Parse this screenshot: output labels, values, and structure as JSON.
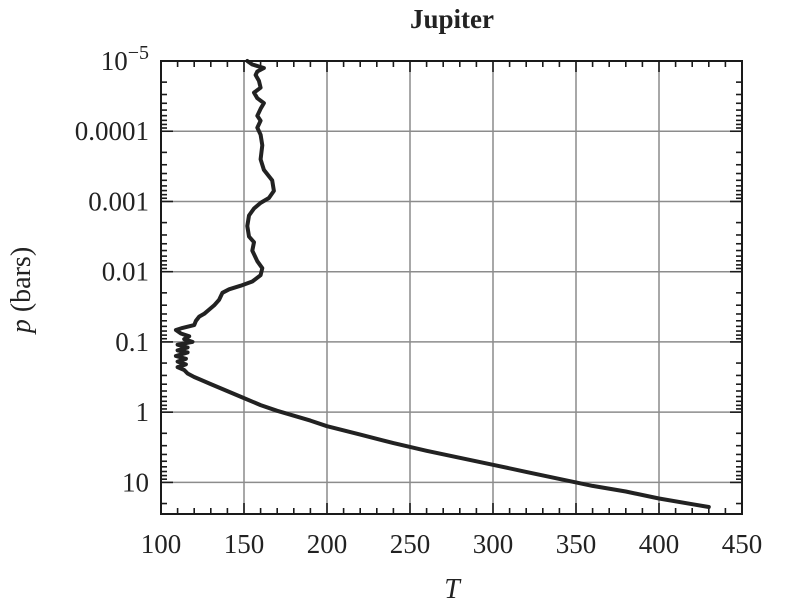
{
  "chart_data": {
    "type": "line",
    "title": "Jupiter",
    "xlabel": "T",
    "ylabel_var": "p",
    "ylabel_unit": " (bars)",
    "xlim": [
      100,
      450
    ],
    "x_ticks": [
      100,
      150,
      200,
      250,
      300,
      350,
      400,
      450
    ],
    "y_scale": "log",
    "y_reversed": true,
    "ylim_log10": [
      -5,
      1.45
    ],
    "y_ticks": [
      {
        "log10": -5,
        "base": "10",
        "exp": "−5"
      },
      {
        "log10": -4,
        "label": "0.0001"
      },
      {
        "log10": -3,
        "label": "0.001"
      },
      {
        "log10": -2,
        "label": "0.01"
      },
      {
        "log10": -1,
        "label": "0.1"
      },
      {
        "log10": 0,
        "label": "1"
      },
      {
        "log10": 1,
        "label": "10"
      }
    ],
    "grid": true,
    "line_color": "#222222",
    "grid_color": "#8c8c8c",
    "series": [
      {
        "points": [
          [
            152,
            -5.0
          ],
          [
            155,
            -4.95
          ],
          [
            162,
            -4.9
          ],
          [
            158,
            -4.85
          ],
          [
            157,
            -4.8
          ],
          [
            159,
            -4.72
          ],
          [
            160,
            -4.62
          ],
          [
            156,
            -4.55
          ],
          [
            158,
            -4.47
          ],
          [
            162,
            -4.4
          ],
          [
            160,
            -4.32
          ],
          [
            158,
            -4.22
          ],
          [
            160,
            -4.15
          ],
          [
            158,
            -4.05
          ],
          [
            160,
            -3.95
          ],
          [
            161,
            -3.8
          ],
          [
            160,
            -3.6
          ],
          [
            162,
            -3.45
          ],
          [
            167,
            -3.3
          ],
          [
            168,
            -3.15
          ],
          [
            165,
            -3.05
          ],
          [
            160,
            -2.98
          ],
          [
            156,
            -2.9
          ],
          [
            153,
            -2.8
          ],
          [
            152,
            -2.65
          ],
          [
            153,
            -2.5
          ],
          [
            156,
            -2.42
          ],
          [
            155,
            -2.3
          ],
          [
            158,
            -2.15
          ],
          [
            161,
            -2.05
          ],
          [
            160,
            -1.95
          ],
          [
            155,
            -1.86
          ],
          [
            148,
            -1.8
          ],
          [
            141,
            -1.75
          ],
          [
            137,
            -1.7
          ],
          [
            135,
            -1.6
          ],
          [
            132,
            -1.52
          ],
          [
            129,
            -1.46
          ],
          [
            126,
            -1.4
          ],
          [
            123,
            -1.36
          ],
          [
            121,
            -1.3
          ],
          [
            120,
            -1.24
          ],
          [
            113,
            -1.2
          ],
          [
            109,
            -1.17
          ],
          [
            112,
            -1.12
          ],
          [
            117,
            -1.08
          ],
          [
            114,
            -1.04
          ],
          [
            119,
            -1.0
          ],
          [
            110,
            -0.96
          ],
          [
            116,
            -0.92
          ],
          [
            110,
            -0.88
          ],
          [
            116,
            -0.85
          ],
          [
            109,
            -0.8
          ],
          [
            115,
            -0.76
          ],
          [
            110,
            -0.72
          ],
          [
            115,
            -0.68
          ],
          [
            110,
            -0.64
          ],
          [
            114,
            -0.6
          ],
          [
            116,
            -0.55
          ],
          [
            120,
            -0.5
          ],
          [
            130,
            -0.4
          ],
          [
            140,
            -0.3
          ],
          [
            150,
            -0.2
          ],
          [
            160,
            -0.1
          ],
          [
            170,
            -0.02
          ],
          [
            190,
            0.12
          ],
          [
            200,
            0.2
          ],
          [
            220,
            0.32
          ],
          [
            240,
            0.44
          ],
          [
            260,
            0.55
          ],
          [
            280,
            0.65
          ],
          [
            300,
            0.75
          ],
          [
            320,
            0.85
          ],
          [
            340,
            0.95
          ],
          [
            360,
            1.05
          ],
          [
            380,
            1.13
          ],
          [
            400,
            1.23
          ],
          [
            420,
            1.31
          ],
          [
            430,
            1.35
          ]
        ]
      }
    ]
  }
}
